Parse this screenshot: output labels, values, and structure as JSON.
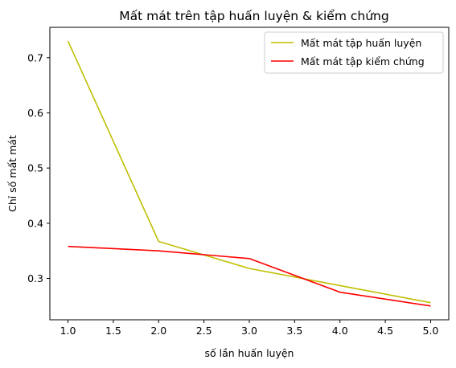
{
  "chart_data": {
    "type": "line",
    "title": "Mất mát trên tập huấn luyện & kiểm chứng",
    "xlabel": "số lần huấn luyện",
    "ylabel": "Chỉ số mất mát",
    "xlim": [
      0.8,
      5.2
    ],
    "ylim": [
      0.225,
      0.755
    ],
    "xticks": [
      "1.0",
      "1.5",
      "2.0",
      "2.5",
      "3.0",
      "3.5",
      "4.0",
      "4.5",
      "5.0"
    ],
    "yticks": [
      "0.3",
      "0.4",
      "0.5",
      "0.6",
      "0.7"
    ],
    "x": [
      1,
      2,
      3,
      4,
      5
    ],
    "series": [
      {
        "name": "Mất mát tập huấn luyện",
        "color": "#bfbf00",
        "values": [
          0.73,
          0.367,
          0.318,
          0.287,
          0.256
        ]
      },
      {
        "name": "Mất mát tập kiểm chứng",
        "color": "#ff0000",
        "values": [
          0.358,
          0.35,
          0.336,
          0.275,
          0.25
        ]
      }
    ],
    "legend": "top-right",
    "grid": false
  }
}
